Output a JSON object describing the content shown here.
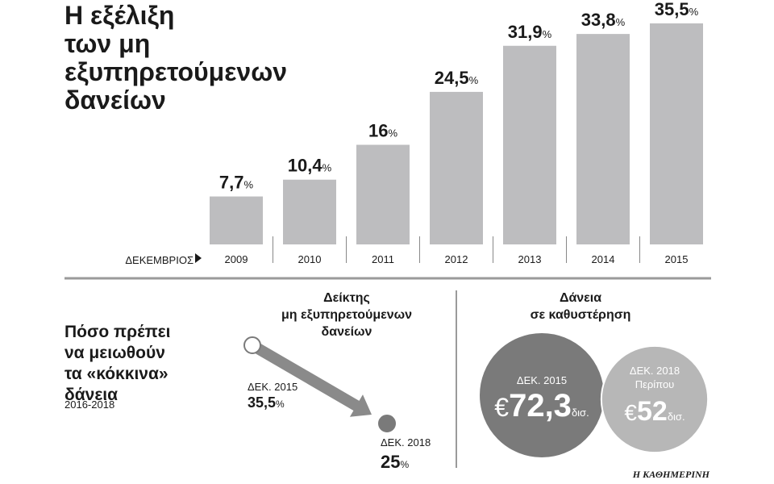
{
  "chart_data": {
    "type": "bar",
    "title": [
      "Η εξέλιξη",
      "των μη",
      "εξυπηρετούμενων",
      "δανείων"
    ],
    "x_label": "ΔΕΚΕΜΒΡΙΟΣ",
    "categories": [
      "2009",
      "2010",
      "2011",
      "2012",
      "2013",
      "2014",
      "2015"
    ],
    "values": [
      7.7,
      10.4,
      16,
      24.5,
      31.9,
      33.8,
      35.5
    ],
    "value_labels": [
      "7,7",
      "10,4",
      "16",
      "24,5",
      "31,9",
      "33,8",
      "35,5"
    ],
    "value_unit": "%",
    "color": "#bdbdbf"
  },
  "lower": {
    "title": [
      "Πόσο πρέπει",
      "να μειωθούν",
      "τα «κόκκινα»",
      "δάνεια"
    ],
    "subtitle": "2016-2018",
    "ratio": {
      "title": [
        "Δείκτης",
        "μη εξυπηρετούμενων",
        "δανείων"
      ],
      "unit": "%",
      "points": [
        {
          "label": "ΔΕΚ. 2015",
          "value": 35.5,
          "value_label": "35,5"
        },
        {
          "label": "ΔΕΚ. 2018",
          "value": 25,
          "value_label": "25"
        }
      ]
    },
    "loans": {
      "title": [
        "Δάνεια",
        "σε καθυστέρηση"
      ],
      "currency": "€",
      "unit": "δισ.",
      "circles": [
        {
          "label": [
            "ΔΕΚ. 2015"
          ],
          "value": 72.3,
          "value_label": "72,3",
          "color": "#7a7a7a"
        },
        {
          "label": [
            "ΔΕΚ. 2018",
            "Περίπου"
          ],
          "value": 52,
          "value_label": "52",
          "color": "#b7b7b7"
        }
      ]
    }
  },
  "source": "Η ΚΑΘΗΜΕΡΙΝΗ"
}
